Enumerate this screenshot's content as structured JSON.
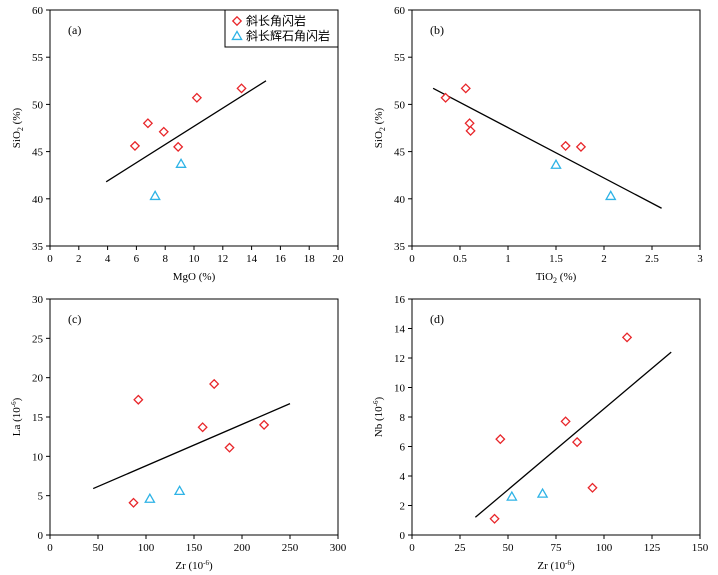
{
  "colors": {
    "diorite": "#e8262a",
    "pyroxene": "#2eb3e6",
    "fit_line": "#000000"
  },
  "legend": {
    "items": [
      {
        "label": "斜长角闪岩",
        "marker": "diamond",
        "color": "#e8262a"
      },
      {
        "label": "斜长辉石角闪岩",
        "marker": "triangle",
        "color": "#2eb3e6"
      }
    ]
  },
  "chart_data": [
    {
      "type": "scatter",
      "panel_label": "(a)",
      "xlabel": "MgO (%)",
      "ylabel": "SiO2 (%)",
      "xlim": [
        0,
        20
      ],
      "ylim": [
        35,
        60
      ],
      "xticks": [
        "0",
        "2",
        "4",
        "6",
        "8",
        "10",
        "12",
        "14",
        "16",
        "18",
        "20"
      ],
      "yticks": [
        "35",
        "40",
        "45",
        "50",
        "55",
        "60"
      ],
      "series": [
        {
          "name": "斜长角闪岩",
          "marker": "diamond",
          "color": "#e8262a",
          "points": [
            [
              5.9,
              45.6
            ],
            [
              6.8,
              48.0
            ],
            [
              7.9,
              47.1
            ],
            [
              8.9,
              45.5
            ],
            [
              10.2,
              50.7
            ],
            [
              13.3,
              51.7
            ]
          ]
        },
        {
          "name": "斜长辉石角闪岩",
          "marker": "triangle",
          "color": "#2eb3e6",
          "points": [
            [
              7.3,
              40.3
            ],
            [
              9.1,
              43.7
            ]
          ]
        }
      ],
      "fit_line": [
        [
          3.9,
          41.8
        ],
        [
          15.0,
          52.5
        ]
      ]
    },
    {
      "type": "scatter",
      "panel_label": "(b)",
      "xlabel": "TiO2 (%)",
      "ylabel": "SiO2 (%)",
      "xlim": [
        0,
        3
      ],
      "ylim": [
        35,
        60
      ],
      "xticks": [
        "0",
        "0.5",
        "1",
        "1.5",
        "2",
        "2.5",
        "3"
      ],
      "yticks": [
        "35",
        "40",
        "45",
        "50",
        "55",
        "60"
      ],
      "series": [
        {
          "name": "斜长角闪岩",
          "marker": "diamond",
          "color": "#e8262a",
          "points": [
            [
              0.35,
              50.7
            ],
            [
              0.56,
              51.7
            ],
            [
              0.6,
              48.0
            ],
            [
              0.61,
              47.2
            ],
            [
              1.6,
              45.6
            ],
            [
              1.76,
              45.5
            ]
          ]
        },
        {
          "name": "斜长辉石角闪岩",
          "marker": "triangle",
          "color": "#2eb3e6",
          "points": [
            [
              1.5,
              43.6
            ],
            [
              2.07,
              40.3
            ]
          ]
        }
      ],
      "fit_line": [
        [
          0.22,
          51.7
        ],
        [
          2.6,
          39.0
        ]
      ]
    },
    {
      "type": "scatter",
      "panel_label": "(c)",
      "xlabel": "Zr (10⁻⁶)",
      "ylabel": "La (10⁻⁶)",
      "xlim": [
        0,
        300
      ],
      "ylim": [
        0,
        30
      ],
      "xticks": [
        "0",
        "50",
        "100",
        "150",
        "200",
        "250",
        "300"
      ],
      "yticks": [
        "0",
        "5",
        "10",
        "15",
        "20",
        "25",
        "30"
      ],
      "series": [
        {
          "name": "斜长角闪岩",
          "marker": "diamond",
          "color": "#e8262a",
          "points": [
            [
              87,
              4.1
            ],
            [
              92,
              17.2
            ],
            [
              159,
              13.7
            ],
            [
              171,
              19.2
            ],
            [
              187,
              11.1
            ],
            [
              223,
              14.0
            ]
          ]
        },
        {
          "name": "斜长辉石角闪岩",
          "marker": "triangle",
          "color": "#2eb3e6",
          "points": [
            [
              104,
              4.6
            ],
            [
              135,
              5.6
            ]
          ]
        }
      ],
      "fit_line": [
        [
          45,
          5.9
        ],
        [
          250,
          16.7
        ]
      ]
    },
    {
      "type": "scatter",
      "panel_label": "(d)",
      "xlabel": "Zr (10⁻⁶)",
      "ylabel": "Nb (10⁻⁶)",
      "xlim": [
        0,
        150
      ],
      "ylim": [
        0,
        16
      ],
      "xticks": [
        "0",
        "25",
        "50",
        "75",
        "100",
        "125",
        "150"
      ],
      "yticks": [
        "0",
        "2",
        "4",
        "6",
        "8",
        "10",
        "12",
        "14",
        "16"
      ],
      "series": [
        {
          "name": "斜长角闪岩",
          "marker": "diamond",
          "color": "#e8262a",
          "points": [
            [
              43,
              1.1
            ],
            [
              46,
              6.5
            ],
            [
              80,
              7.7
            ],
            [
              86,
              6.3
            ],
            [
              94,
              3.2
            ],
            [
              112,
              13.4
            ]
          ]
        },
        {
          "name": "斜长辉石角闪岩",
          "marker": "triangle",
          "color": "#2eb3e6",
          "points": [
            [
              52,
              2.6
            ],
            [
              68,
              2.8
            ]
          ]
        }
      ],
      "fit_line": [
        [
          33,
          1.2
        ],
        [
          135,
          12.4
        ]
      ]
    }
  ]
}
